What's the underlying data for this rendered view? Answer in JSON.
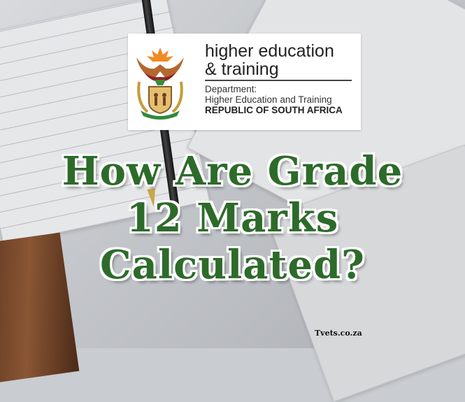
{
  "logo": {
    "line1": "higher education",
    "line2": "& training",
    "department_label": "Department:",
    "department_name": "Higher Education and Training",
    "country": "REPUBLIC OF SOUTH AFRICA"
  },
  "title": {
    "lines": [
      "How Are Grade",
      "12 Marks",
      "Calculated?"
    ],
    "color": "#2d6b2a"
  },
  "watermark": "Tvets.co.za"
}
